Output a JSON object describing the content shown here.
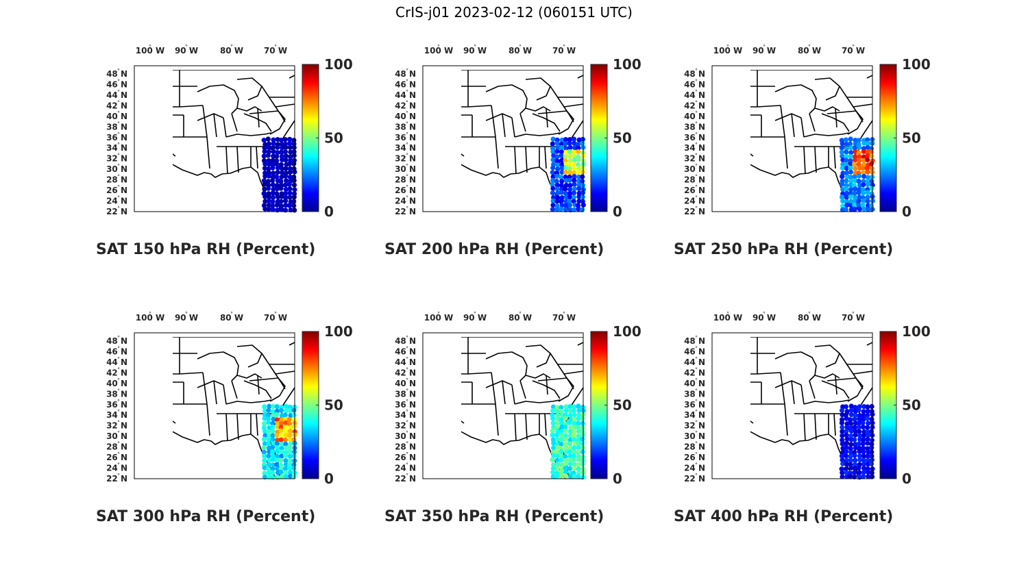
{
  "figure": {
    "title": "CrIS-j01 2023-02-12 (060151 UTC)"
  },
  "map": {
    "lon_labels": [
      "100",
      "90",
      "80",
      "70"
    ],
    "lon_hemisphere": "W",
    "lat_labels": [
      "48",
      "46",
      "44",
      "42",
      "40",
      "38",
      "36",
      "34",
      "32",
      "30",
      "28",
      "26",
      "24",
      "22"
    ],
    "lat_hemisphere": "N",
    "degree_symbol": "°"
  },
  "colorbar": {
    "ticks": [
      "100",
      "50",
      "0"
    ],
    "colormap": [
      "#00008f",
      "#0000ff",
      "#0080ff",
      "#00ffff",
      "#80ff80",
      "#ffff00",
      "#ff8000",
      "#ff0000",
      "#800000"
    ]
  },
  "panels": [
    {
      "title": "SAT 150 hPa RH (Percent)",
      "mean_rh": 5,
      "spread": 4,
      "wet_patch_rh": null
    },
    {
      "title": "SAT 200 hPa RH (Percent)",
      "mean_rh": 18,
      "spread": 10,
      "wet_patch_rh": 70
    },
    {
      "title": "SAT 250 hPa RH (Percent)",
      "mean_rh": 25,
      "spread": 10,
      "wet_patch_rh": 95
    },
    {
      "title": "SAT 300 hPa RH (Percent)",
      "mean_rh": 35,
      "spread": 10,
      "wet_patch_rh": 85
    },
    {
      "title": "SAT 350 hPa RH (Percent)",
      "mean_rh": 42,
      "spread": 10,
      "wet_patch_rh": null
    },
    {
      "title": "SAT 400 hPa RH (Percent)",
      "mean_rh": 12,
      "spread": 6,
      "wet_patch_rh": null
    }
  ]
}
